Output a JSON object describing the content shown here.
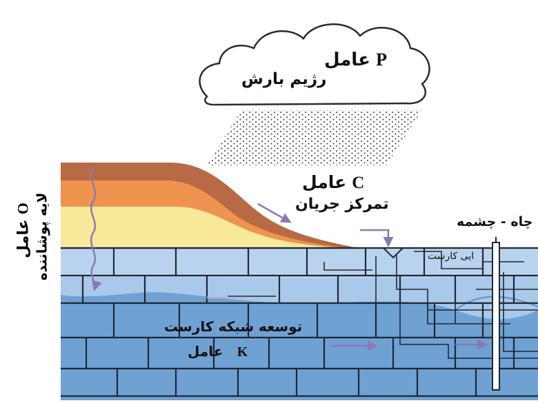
{
  "factor_p": {
    "word": "عامل",
    "letter": "P",
    "caption": "رژیم بارش"
  },
  "factor_c": {
    "word": "عامل",
    "letter": "C",
    "caption": "تمرکز جریان"
  },
  "factor_o": {
    "word": "عامل",
    "letter": "O",
    "caption": "لایه پوشاننده"
  },
  "factor_k": {
    "word": "عامل",
    "letter": "K",
    "caption": "توسعه شبکه کارست"
  },
  "epikarst_label": "ایی کارست",
  "well_spring_label": "چاه - چشمه",
  "colors": {
    "cloud_stroke": "#2b2b2b",
    "rain_dots": "#555555",
    "soil_top": "#b86a44",
    "soil_orange": "#ef934f",
    "soil_yellow": "#f7e89a",
    "epikarst": "#bcd5ee",
    "karst_upper": "#a9c9ea",
    "karst_lower": "#6fa1d3",
    "water_table": "#5b8fc8",
    "block_lines": "#1f2733",
    "flow_arrow": "#8b78b4"
  }
}
